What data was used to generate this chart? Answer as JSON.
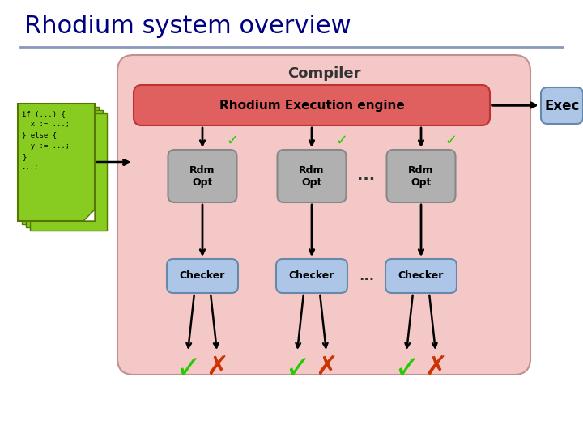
{
  "title": "Rhodium system overview",
  "title_color": "#000080",
  "title_fontsize": 22,
  "bg_color": "#ffffff",
  "compiler_box_color": "#f5c8c8",
  "compiler_box_edge": "#c09090",
  "compiler_label": "Compiler",
  "compiler_label_fontsize": 13,
  "execution_engine_label": "Rhodium Execution engine",
  "execution_engine_color": "#e06060",
  "execution_engine_edge": "#bb3333",
  "ee_text_color": "#000000",
  "ee_fontsize": 11,
  "exec_box_color": "#adc6e8",
  "exec_box_edge": "#6688aa",
  "exec_label": "Exec",
  "exec_fontsize": 12,
  "rdm_box_color": "#b0b0b0",
  "rdm_box_edge": "#888888",
  "rdm_label": "Rdm\nOpt",
  "rdm_fontsize": 9,
  "checker_box_color": "#adc6e8",
  "checker_box_edge": "#6688aa",
  "checker_label": "Checker",
  "checker_fontsize": 9,
  "dots": "...",
  "code_lines": [
    "if (...) {",
    "  x := ...;",
    "} else {",
    "  y := ...;",
    "}",
    "...;"
  ],
  "code_box_color": "#88cc22",
  "code_box_edge": "#557700",
  "check_color": "#22cc00",
  "cross_color": "#cc3300",
  "separator_color": "#8899bb",
  "arrow_color": "#000000"
}
